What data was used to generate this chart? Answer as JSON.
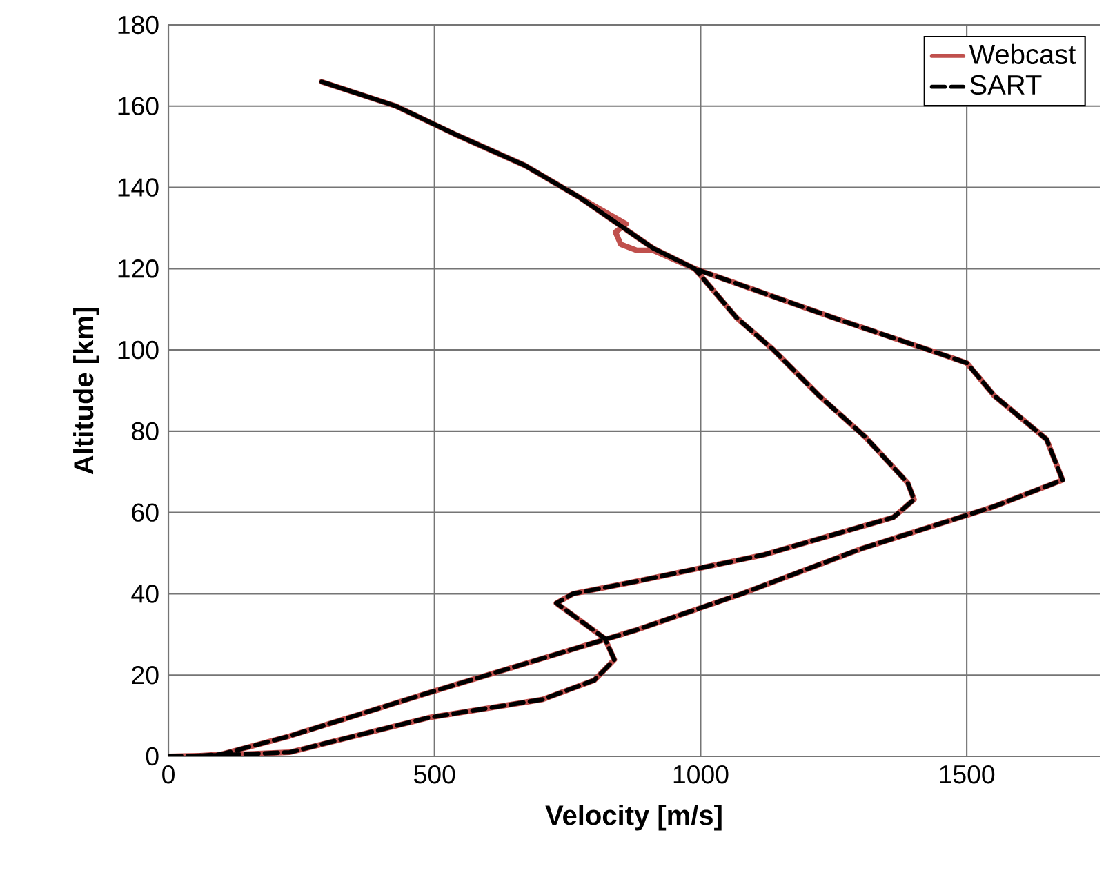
{
  "chart_data": {
    "type": "line",
    "xlabel": "Velocity [m/s]",
    "ylabel": "Altitude [km]",
    "xlim": [
      0,
      1750
    ],
    "xticks": [
      0,
      500,
      1000,
      1500
    ],
    "ylim": [
      0,
      180
    ],
    "yticks": [
      0,
      20,
      40,
      60,
      80,
      100,
      120,
      140,
      160,
      180
    ],
    "grid": true,
    "legend": "top right",
    "marker": "none",
    "series": [
      {
        "name": "Webcast",
        "color": "#c0504d",
        "line_style": "solid",
        "x": [
          0,
          100,
          228,
          488,
          703,
          800,
          838,
          820,
          729,
          760,
          877,
          1119,
          1362,
          1401,
          1389,
          1310,
          1223,
          1137,
          1067,
          989,
          911,
          880,
          850,
          840,
          860,
          773,
          670,
          540,
          428,
          288,
          428,
          540,
          670,
          773,
          911,
          989,
          1189,
          1248,
          1440,
          1500,
          1552,
          1650,
          1680,
          1552,
          1300,
          1077,
          877,
          488,
          228,
          99,
          40
        ],
        "values": [
          0,
          0.3,
          1,
          9.5,
          14,
          18.7,
          23.8,
          29,
          37.7,
          40,
          43,
          49.6,
          58.8,
          63.2,
          67.3,
          78.5,
          88.7,
          100,
          108,
          120,
          124.5,
          124.5,
          126,
          129,
          131,
          137.5,
          145.4,
          153,
          160,
          166,
          160,
          153,
          145.4,
          137.5,
          125,
          120,
          110.7,
          108,
          99.5,
          96.8,
          88.7,
          78,
          68,
          61.5,
          51,
          40,
          31,
          15.6,
          5,
          0.5,
          0
        ]
      },
      {
        "name": "SART",
        "color": "#000000",
        "line_style": "dashed",
        "x": [
          0,
          100,
          228,
          488,
          703,
          800,
          838,
          820,
          729,
          760,
          877,
          1119,
          1362,
          1401,
          1389,
          1310,
          1223,
          1137,
          1067,
          989,
          911,
          773,
          670,
          540,
          428,
          288,
          428,
          540,
          670,
          773,
          911,
          989,
          1189,
          1248,
          1440,
          1500,
          1552,
          1650,
          1680,
          1552,
          1300,
          1077,
          877,
          488,
          228,
          99,
          40
        ],
        "values": [
          0,
          0.3,
          1,
          9.5,
          14,
          18.7,
          23.8,
          29,
          37.7,
          40,
          43,
          49.6,
          58.8,
          63.2,
          67.3,
          78.5,
          88.7,
          100,
          108,
          120,
          125,
          137.5,
          145.4,
          153,
          160,
          166,
          160,
          153,
          145.4,
          137.5,
          125,
          120,
          110.7,
          108,
          99.5,
          96.8,
          88.7,
          78,
          68,
          61.5,
          51,
          40,
          31,
          15.6,
          5,
          0.5,
          0
        ]
      }
    ]
  }
}
